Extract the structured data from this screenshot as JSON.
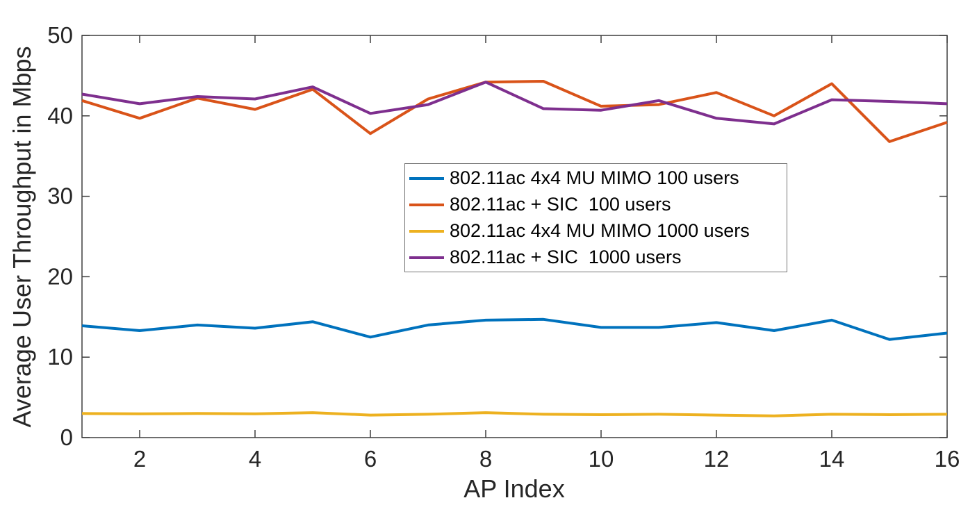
{
  "figure": {
    "background": "#ffffff",
    "axis_color": "#3d3d3d",
    "tick_label_color": "#262626",
    "axis_label_color": "#262626"
  },
  "chart_data": {
    "type": "line",
    "title": "",
    "xlabel": "AP Index",
    "ylabel": "Average User Throughput in Mbps",
    "xlim": [
      1,
      16
    ],
    "ylim": [
      0,
      50
    ],
    "x_ticks": [
      2,
      4,
      6,
      8,
      10,
      12,
      14,
      16
    ],
    "y_ticks": [
      0,
      10,
      20,
      30,
      40,
      50
    ],
    "grid": false,
    "box": true,
    "legend": {
      "position": "inside-upper-center",
      "border": true,
      "entries": [
        "802.11ac 4x4 MU MIMO 100 users",
        "802.11ac + SIC  100 users",
        "802.11ac 4x4 MU MIMO 1000 users",
        "802.11ac + SIC  1000 users"
      ]
    },
    "x": [
      1,
      2,
      3,
      4,
      5,
      6,
      7,
      8,
      9,
      10,
      11,
      12,
      13,
      14,
      15,
      16
    ],
    "series": [
      {
        "name": "802.11ac 4x4 MU MIMO 100 users",
        "color": "#0072BD",
        "values": [
          13.9,
          13.3,
          14.0,
          13.6,
          14.4,
          12.5,
          14.0,
          14.6,
          14.7,
          13.7,
          13.7,
          14.3,
          13.3,
          14.6,
          12.2,
          13.0
        ]
      },
      {
        "name": "802.11ac + SIC  100 users",
        "color": "#D95319",
        "values": [
          41.9,
          39.7,
          42.2,
          40.8,
          43.3,
          37.8,
          42.1,
          44.2,
          44.3,
          41.2,
          41.4,
          42.9,
          40.0,
          44.0,
          36.8,
          39.2
        ]
      },
      {
        "name": "802.11ac 4x4 MU MIMO 1000 users",
        "color": "#EDB120",
        "values": [
          3.0,
          2.95,
          3.0,
          2.95,
          3.1,
          2.8,
          2.9,
          3.1,
          2.9,
          2.85,
          2.9,
          2.8,
          2.7,
          2.9,
          2.85,
          2.9
        ]
      },
      {
        "name": "802.11ac + SIC  1000 users",
        "color": "#7E2F8E",
        "values": [
          42.7,
          41.5,
          42.4,
          42.1,
          43.6,
          40.3,
          41.4,
          44.2,
          40.9,
          40.7,
          41.9,
          39.7,
          39.0,
          42.0,
          41.8,
          41.5
        ]
      }
    ]
  }
}
